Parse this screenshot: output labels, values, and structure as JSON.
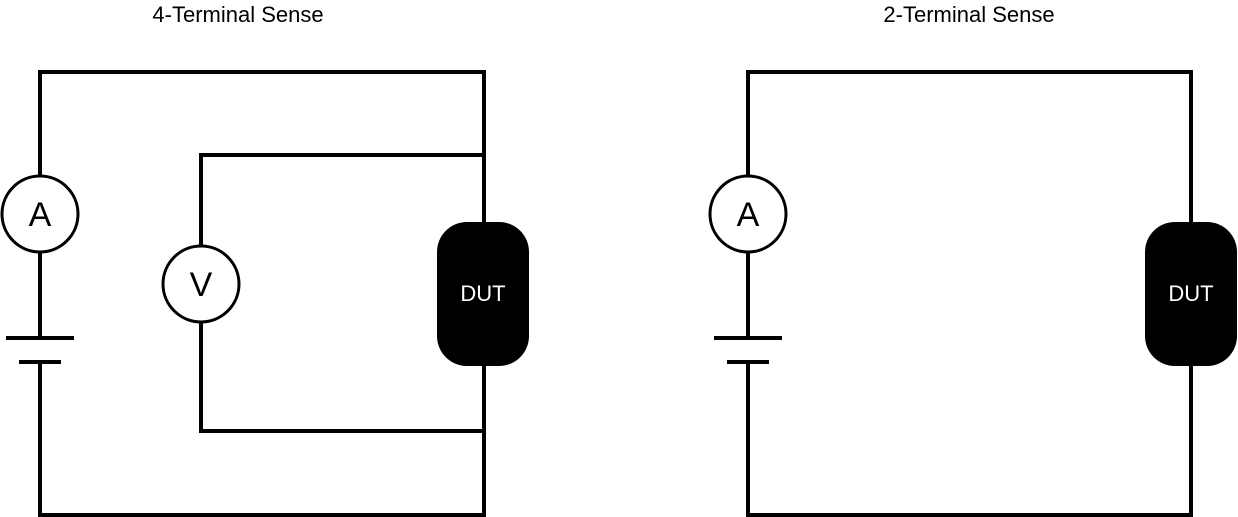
{
  "diagrams": {
    "four_terminal": {
      "title": "4-Terminal Sense",
      "ammeter_label": "A",
      "voltmeter_label": "V",
      "dut_label": "DUT"
    },
    "two_terminal": {
      "title": "2-Terminal Sense",
      "ammeter_label": "A",
      "dut_label": "DUT"
    }
  },
  "colors": {
    "wire": "#000000",
    "dut_fill": "#000000",
    "dut_text": "#ffffff",
    "background": "#ffffff"
  }
}
